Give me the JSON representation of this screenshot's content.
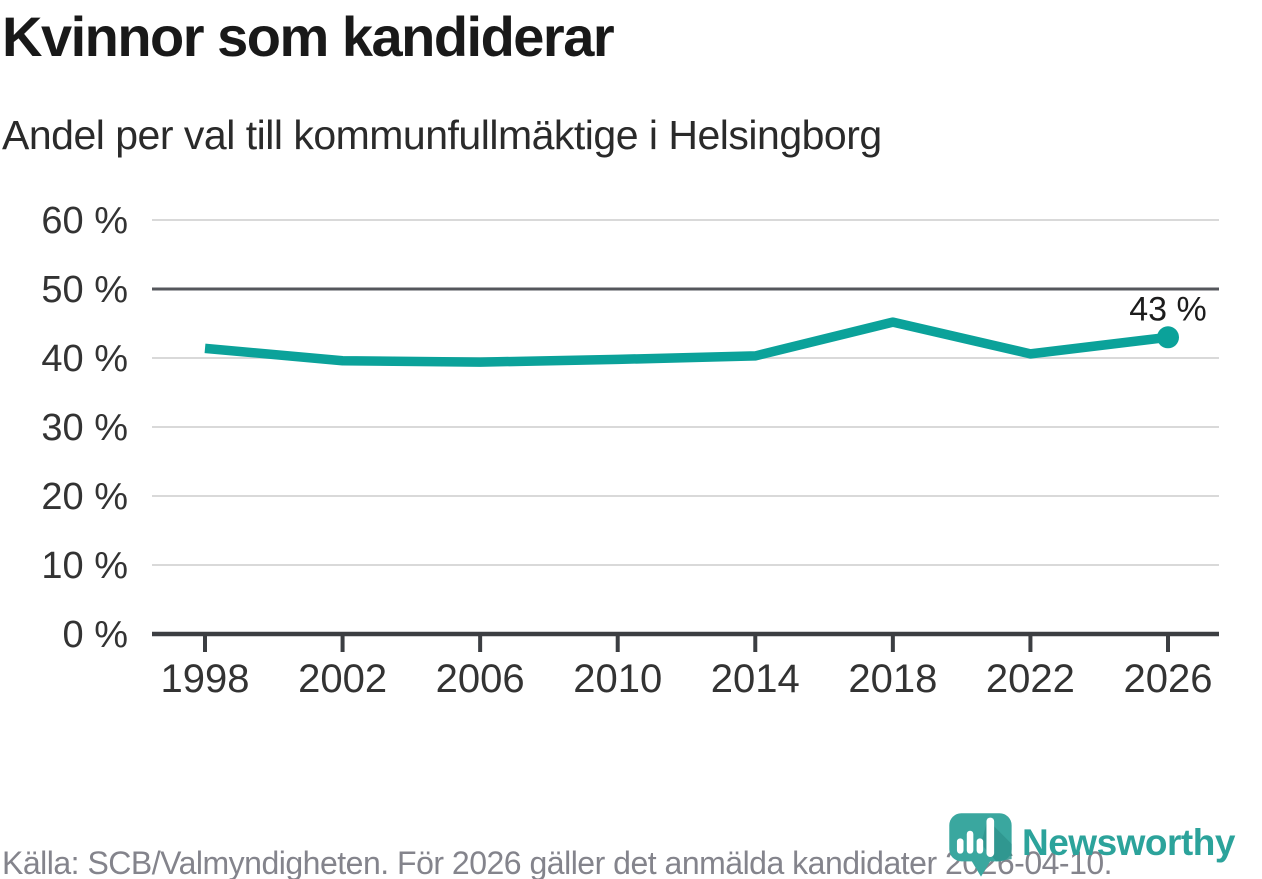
{
  "chart_data": {
    "type": "line",
    "title": "Kvinnor som kandiderar",
    "subtitle": "Andel per val till kommunfullmäktige i Helsingborg",
    "categories": [
      1998,
      2002,
      2006,
      2010,
      2014,
      2018,
      2022,
      2026
    ],
    "series": [
      {
        "name": "Kvinnor som kandiderar",
        "values": [
          41.4,
          39.6,
          39.4,
          39.8,
          40.3,
          45.2,
          40.6,
          43
        ]
      }
    ],
    "xticks": [
      "1998",
      "2002",
      "2006",
      "2010",
      "2014",
      "2018",
      "2022",
      "2026"
    ],
    "ytick_values": [
      0,
      10,
      20,
      30,
      40,
      50,
      60
    ],
    "ytick_labels": [
      "0 %",
      "10 %",
      "20 %",
      "30 %",
      "40 %",
      "50 %",
      "60 %"
    ],
    "ylim": [
      0,
      60
    ],
    "grid": true,
    "highlight_gridline_value": 50,
    "end_point_label": "43 %",
    "line_color": "#0ba29a",
    "legend_position": "none"
  },
  "footer": {
    "source": "Källa: SCB/Valmyndigheten. För 2026 gäller det anmälda kandidater 2026-04-10.",
    "brand": "Newsworthy"
  },
  "colors": {
    "accent_teal": "#0ba29a",
    "brand_teal": "#2ca39b",
    "grid_light": "#d9d9d9",
    "grid_dark": "#55575c",
    "axis": "#3c3e42",
    "text_dark": "#191919",
    "text_muted": "#84848c"
  }
}
